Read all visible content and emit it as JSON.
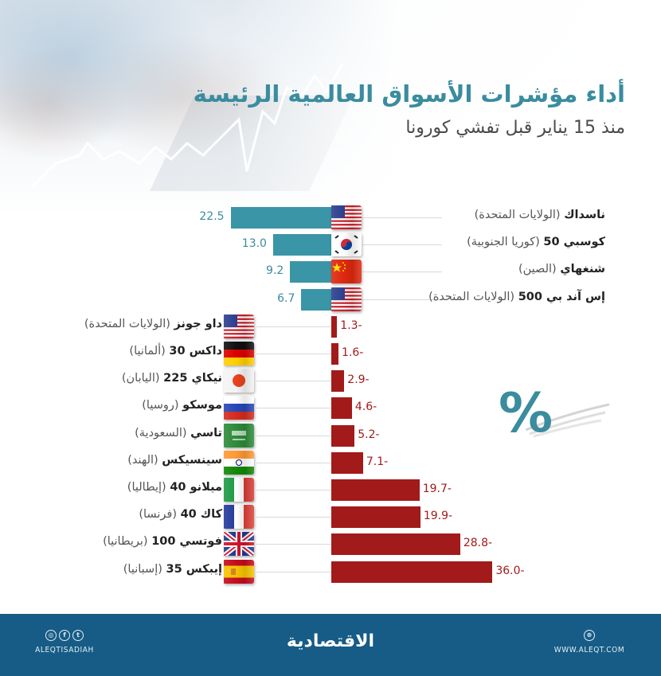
{
  "header": {
    "title": "أداء مؤشرات الأسواق العالمية الرئيسة",
    "subtitle": "منذ 15 يناير قبل تفشي كورونا"
  },
  "colors": {
    "positive": "#3a95a6",
    "negative": "#a31a1a",
    "title": "#3a8c9e",
    "footer": "#165c86"
  },
  "unit_symbol": "%",
  "chart_data": {
    "type": "bar",
    "orientation": "horizontal",
    "title": "أداء مؤشرات الأسواق العالمية الرئيسة",
    "subtitle": "منذ 15 يناير قبل تفشي كورونا",
    "unit": "%",
    "xlabel": "",
    "ylabel": "",
    "grid": false,
    "legend": null,
    "categories": [
      "ناسداك (الولايات المتحدة)",
      "كوسبي 50 (كوريا الجنوبية)",
      "شنغهاي (الصين)",
      "إس آند بي 500 (الولايات المتحدة)",
      "داو جونز (الولايات المتحدة)",
      "داكس 30 (ألمانيا)",
      "نيكاي 225 (اليابان)",
      "موسكو (روسيا)",
      "تاسي (السعودية)",
      "سينسيكس (الهند)",
      "ميلانو 40 (إيطاليا)",
      "كاك 40 (فرنسا)",
      "فوتسي 100 (بريطانيا)",
      "إيبكس 35 (إسبانيا)"
    ],
    "values": [
      22.5,
      13.0,
      9.2,
      6.7,
      -1.3,
      -1.6,
      -2.9,
      -4.6,
      -5.2,
      -7.1,
      -19.7,
      -19.9,
      -28.8,
      -36.0
    ],
    "xlim": [
      -36,
      22.5
    ]
  },
  "rows": [
    {
      "index": "ناسداك",
      "country": "(الولايات المتحدة)",
      "value": 22.5,
      "display": "22.5",
      "flag": "us"
    },
    {
      "index": "كوسبي 50",
      "country": "(كوريا الجنوبية)",
      "value": 13.0,
      "display": "13.0",
      "flag": "kr"
    },
    {
      "index": "شنغهاي",
      "country": "(الصين)",
      "value": 9.2,
      "display": "9.2",
      "flag": "cn"
    },
    {
      "index": "إس آند بي 500",
      "country": "(الولايات المتحدة)",
      "value": 6.7,
      "display": "6.7",
      "flag": "us"
    },
    {
      "index": "داو جونز",
      "country": "(الولايات المتحدة)",
      "value": -1.3,
      "display": "1.3-",
      "flag": "us"
    },
    {
      "index": "داكس 30",
      "country": "(ألمانيا)",
      "value": -1.6,
      "display": "1.6-",
      "flag": "de"
    },
    {
      "index": "نيكاي 225",
      "country": "(اليابان)",
      "value": -2.9,
      "display": "2.9-",
      "flag": "jp"
    },
    {
      "index": "موسكو",
      "country": "(روسيا)",
      "value": -4.6,
      "display": "4.6-",
      "flag": "ru"
    },
    {
      "index": "تاسي",
      "country": "(السعودية)",
      "value": -5.2,
      "display": "5.2-",
      "flag": "sa"
    },
    {
      "index": "سينسيكس",
      "country": "(الهند)",
      "value": -7.1,
      "display": "7.1-",
      "flag": "in"
    },
    {
      "index": "ميلانو 40",
      "country": "(إيطاليا)",
      "value": -19.7,
      "display": "19.7-",
      "flag": "it"
    },
    {
      "index": "كاك 40",
      "country": "(فرنسا)",
      "value": -19.9,
      "display": "19.9-",
      "flag": "fr"
    },
    {
      "index": "فوتسي 100",
      "country": "(بريطانيا)",
      "value": -28.8,
      "display": "28.8-",
      "flag": "gb"
    },
    {
      "index": "إيبكس 35",
      "country": "(إسبانيا)",
      "value": -36.0,
      "display": "36.0-",
      "flag": "es"
    }
  ],
  "footer": {
    "brand": "الاقتصادية",
    "social_handle": "ALEQTISADIAH",
    "social_icons": [
      "instagram-icon",
      "facebook-icon",
      "twitter-icon"
    ],
    "website": "WWW.ALEQT.COM",
    "website_icon": "globe-icon"
  }
}
